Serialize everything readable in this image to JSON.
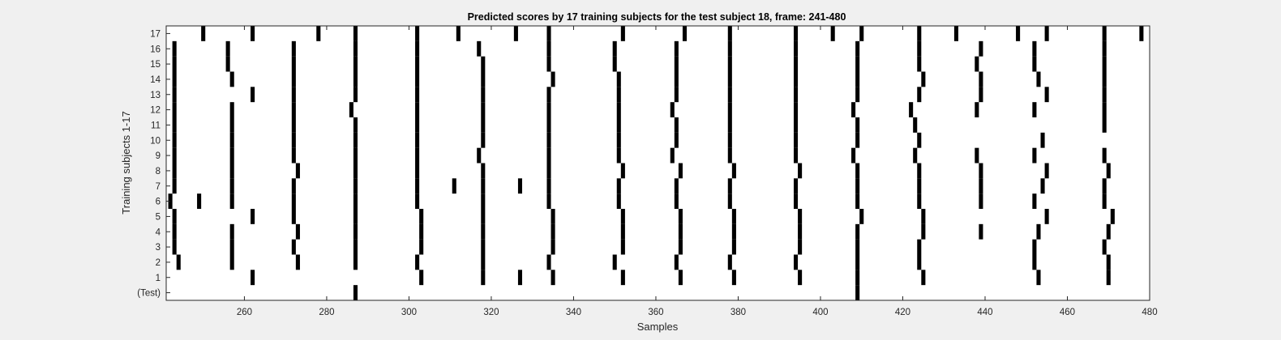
{
  "chart_data": {
    "type": "heatmap",
    "title": "Predicted scores by 17 training subjects for the test subject 18, frame: 241-480",
    "xlabel": "Samples",
    "ylabel": "Training subjects 1-17",
    "xlim": [
      241,
      480
    ],
    "x_ticks": [
      260,
      280,
      300,
      320,
      340,
      360,
      380,
      400,
      420,
      440,
      460,
      480
    ],
    "y_tick_labels": [
      "(Test)",
      "1",
      "2",
      "3",
      "4",
      "5",
      "6",
      "7",
      "8",
      "9",
      "10",
      "11",
      "12",
      "13",
      "14",
      "15",
      "16",
      "17"
    ],
    "grid": false,
    "colors": {
      "mark": "#000000",
      "background": "#ffffff",
      "figure": "#f0f0f0"
    },
    "rows": [
      {
        "label": "(Test)",
        "x": [
          287,
          409
        ]
      },
      {
        "label": "1",
        "x": [
          262,
          303,
          318,
          327,
          335,
          352,
          366,
          379,
          395,
          409,
          425,
          453,
          470
        ]
      },
      {
        "label": "2",
        "x": [
          244,
          257,
          273,
          287,
          302,
          318,
          334,
          350,
          365,
          378,
          394,
          409,
          424,
          452,
          470
        ]
      },
      {
        "label": "3",
        "x": [
          243,
          257,
          272,
          287,
          303,
          318,
          335,
          352,
          366,
          379,
          395,
          409,
          424,
          452,
          469
        ]
      },
      {
        "label": "4",
        "x": [
          243,
          257,
          273,
          287,
          303,
          318,
          335,
          352,
          366,
          379,
          395,
          409,
          425,
          439,
          453,
          470
        ]
      },
      {
        "label": "5",
        "x": [
          243,
          262,
          272,
          287,
          303,
          318,
          335,
          352,
          366,
          379,
          395,
          410,
          425,
          455,
          471
        ]
      },
      {
        "label": "6",
        "x": [
          242,
          249,
          257,
          272,
          287,
          302,
          318,
          334,
          351,
          365,
          378,
          394,
          409,
          424,
          439,
          452,
          469
        ]
      },
      {
        "label": "7",
        "x": [
          243,
          257,
          272,
          287,
          302,
          311,
          318,
          327,
          334,
          351,
          365,
          378,
          394,
          409,
          424,
          439,
          454,
          469
        ]
      },
      {
        "label": "8",
        "x": [
          243,
          257,
          273,
          287,
          302,
          318,
          334,
          352,
          366,
          379,
          395,
          409,
          424,
          439,
          455,
          470
        ]
      },
      {
        "label": "9",
        "x": [
          243,
          257,
          272,
          287,
          302,
          317,
          334,
          351,
          364,
          378,
          394,
          408,
          423,
          438,
          452,
          469
        ]
      },
      {
        "label": "10",
        "x": [
          243,
          257,
          272,
          287,
          302,
          318,
          334,
          351,
          365,
          378,
          394,
          409,
          424,
          454
        ]
      },
      {
        "label": "11",
        "x": [
          243,
          257,
          272,
          287,
          302,
          318,
          334,
          351,
          365,
          378,
          394,
          409,
          423,
          469
        ]
      },
      {
        "label": "12",
        "x": [
          243,
          257,
          272,
          286,
          302,
          318,
          334,
          351,
          364,
          378,
          394,
          408,
          422,
          438,
          452,
          469
        ]
      },
      {
        "label": "13",
        "x": [
          243,
          262,
          272,
          287,
          302,
          318,
          334,
          351,
          365,
          378,
          394,
          409,
          424,
          439,
          455,
          469
        ]
      },
      {
        "label": "14",
        "x": [
          243,
          257,
          272,
          287,
          302,
          318,
          335,
          351,
          365,
          378,
          394,
          409,
          425,
          439,
          453,
          469
        ]
      },
      {
        "label": "15",
        "x": [
          243,
          256,
          272,
          287,
          302,
          318,
          334,
          350,
          365,
          378,
          394,
          409,
          424,
          438,
          452,
          469
        ]
      },
      {
        "label": "16",
        "x": [
          243,
          256,
          272,
          287,
          302,
          317,
          334,
          350,
          365,
          378,
          394,
          409,
          424,
          439,
          452,
          469
        ]
      },
      {
        "label": "17",
        "x": [
          250,
          262,
          278,
          287,
          302,
          312,
          326,
          334,
          352,
          367,
          378,
          394,
          403,
          410,
          424,
          433,
          448,
          455,
          469,
          478
        ]
      }
    ]
  }
}
